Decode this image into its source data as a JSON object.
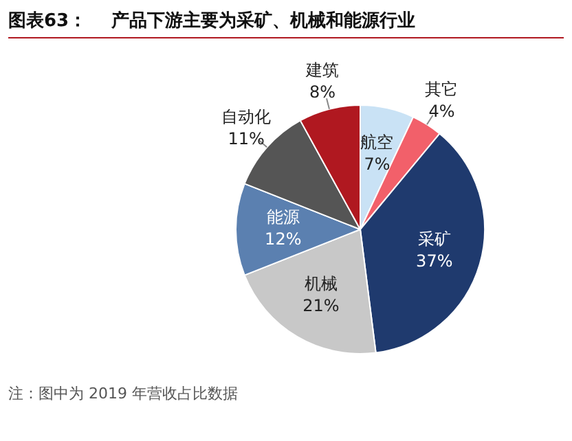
{
  "chart_data": {
    "type": "pie",
    "title": "图表63：    产品下游主要为采矿、机械和能源行业",
    "categories": [
      "航空",
      "其它",
      "采矿",
      "机械",
      "能源",
      "自动化",
      "建筑"
    ],
    "values": [
      7,
      4,
      37,
      21,
      12,
      11,
      8
    ],
    "colors": [
      "#c9e2f5",
      "#f2606a",
      "#1f3a6e",
      "#c8c8c8",
      "#5b80b0",
      "#555555",
      "#b01820"
    ],
    "value_labels": [
      "7%",
      "4%",
      "37%",
      "21%",
      "12%",
      "11%",
      "8%"
    ],
    "legend": false,
    "annotations": [
      "注：图中为 2019 年营收占比数据"
    ]
  }
}
